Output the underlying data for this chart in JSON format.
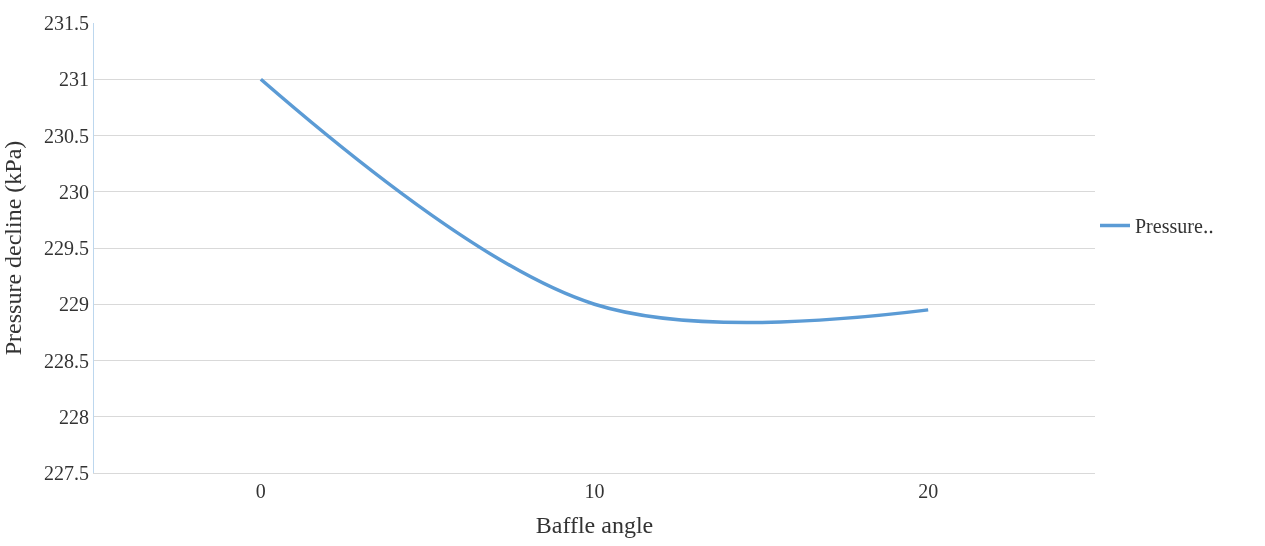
{
  "chart_data": {
    "type": "line",
    "xlabel": "Baffle angle",
    "ylabel": "Pressure decline (kPa)",
    "x": [
      0,
      10,
      20
    ],
    "series": [
      {
        "name": "Pressure‥",
        "color": "#5b9bd5",
        "values": [
          231,
          229,
          228.95
        ]
      }
    ],
    "xlim": [
      -5,
      25
    ],
    "xticks": [
      0,
      10,
      20
    ],
    "ylim": [
      227.5,
      231.5
    ],
    "yticks": [
      227.5,
      228,
      228.5,
      229,
      229.5,
      230,
      230.5,
      231,
      231.5
    ],
    "grid": "y",
    "legend": "right",
    "marker": "none",
    "line_style": "solid"
  }
}
